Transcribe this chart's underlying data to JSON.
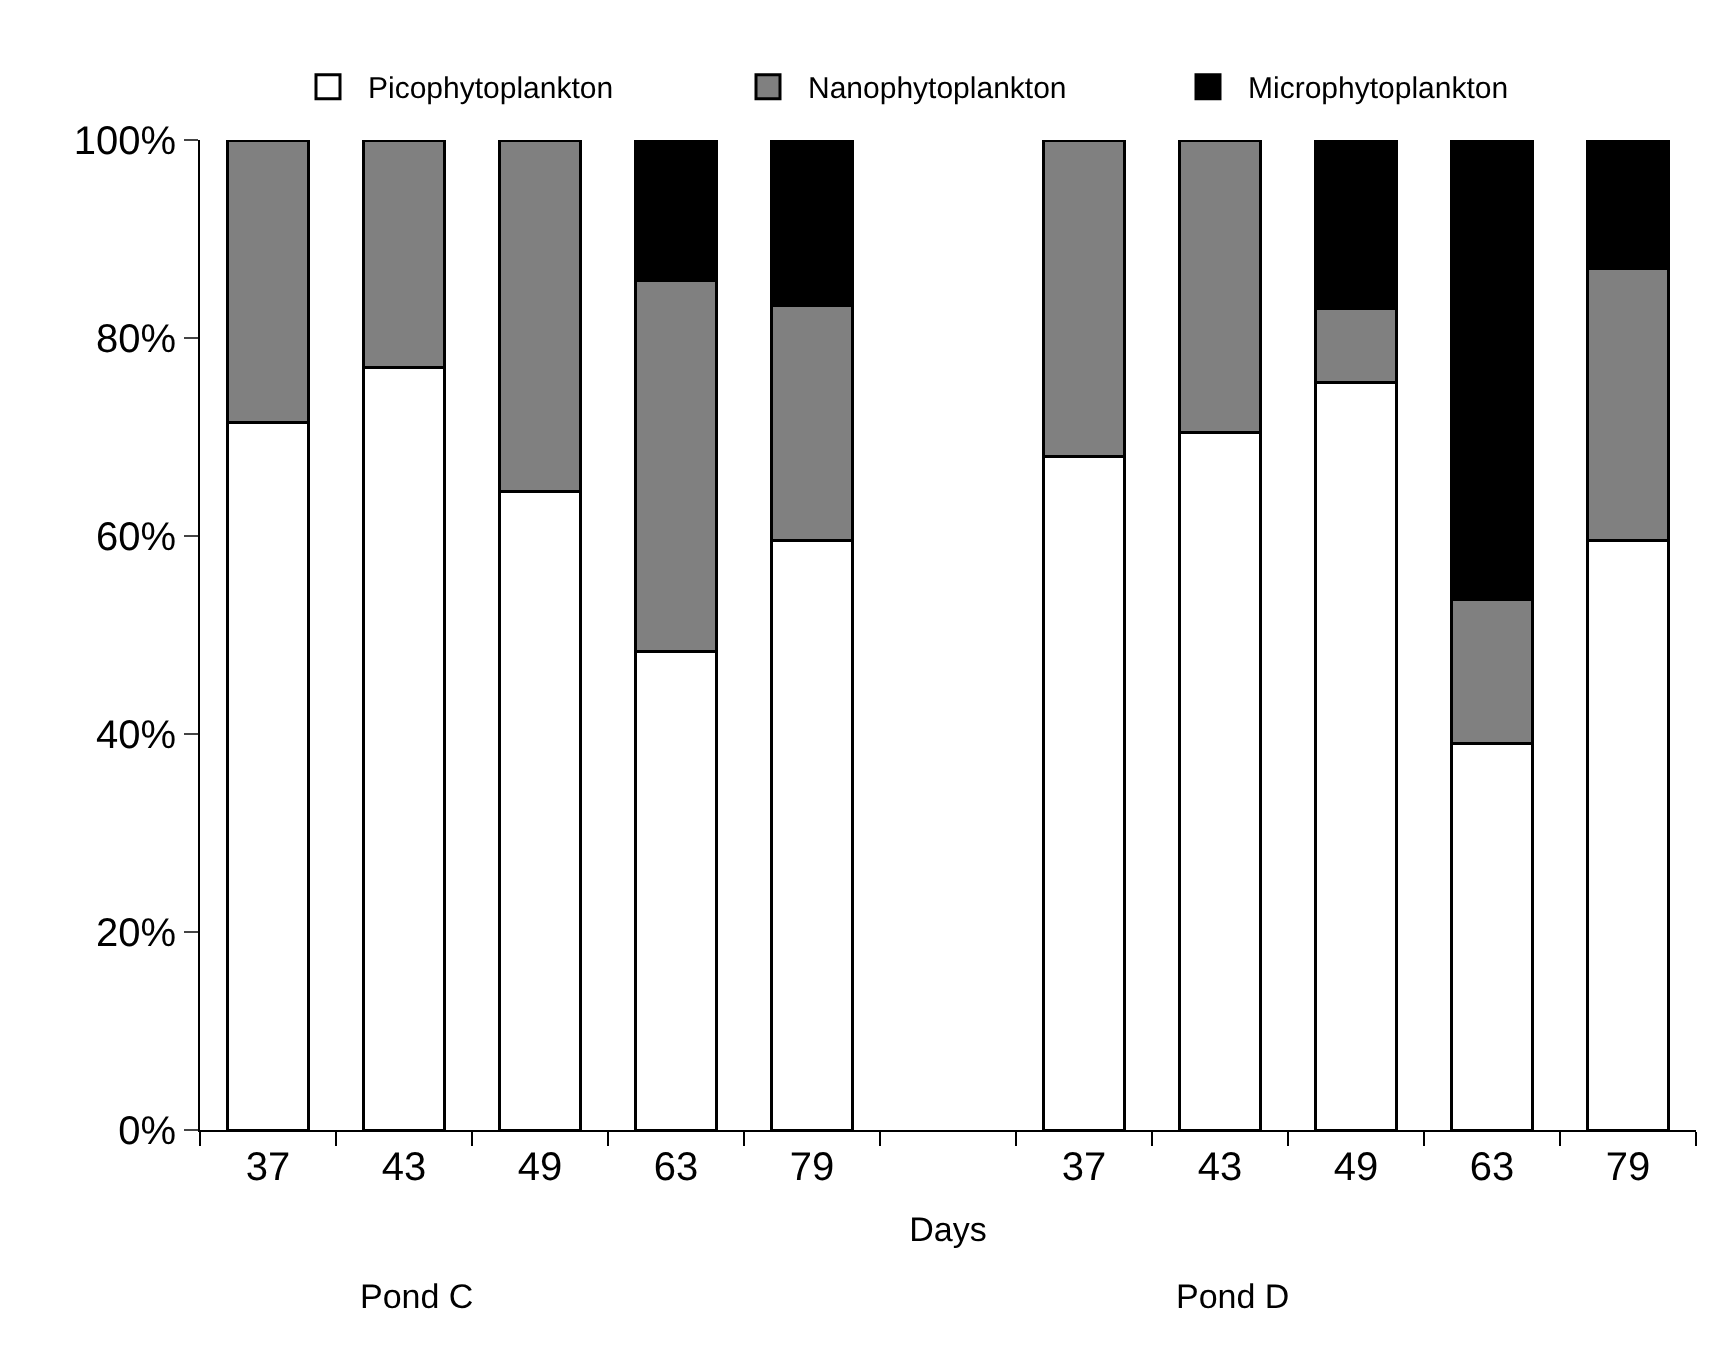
{
  "chart_data": {
    "type": "bar",
    "stacked": true,
    "xlabel": "Days",
    "categories": [
      "37",
      "43",
      "49",
      "63",
      "79",
      null,
      "37",
      "43",
      "49",
      "63",
      "79"
    ],
    "series": [
      {
        "name": "Picophytoplankton",
        "color": "#ffffff",
        "values": [
          71.5,
          77,
          64.5,
          48.3,
          59.5,
          null,
          68,
          70.5,
          75.5,
          39,
          59.5
        ]
      },
      {
        "name": "Nanophytoplankton",
        "color": "#808080",
        "values": [
          28.5,
          23,
          35.5,
          37.5,
          23.8,
          null,
          32,
          29.5,
          7.5,
          14.6,
          27.5
        ]
      },
      {
        "name": "Microphytoplankton",
        "color": "#000000",
        "values": [
          0,
          0,
          0,
          14.2,
          16.7,
          null,
          0,
          0,
          17,
          46.4,
          13
        ]
      }
    ],
    "ylim": [
      0,
      100
    ],
    "yticks": [
      {
        "value": 0,
        "label": "0%"
      },
      {
        "value": 20,
        "label": "20%"
      },
      {
        "value": 40,
        "label": "40%"
      },
      {
        "value": 60,
        "label": "60%"
      },
      {
        "value": 80,
        "label": "80%"
      },
      {
        "value": 100,
        "label": "100%"
      }
    ],
    "annotations": [
      "Pond C",
      "Pond D"
    ],
    "legend": "top"
  }
}
